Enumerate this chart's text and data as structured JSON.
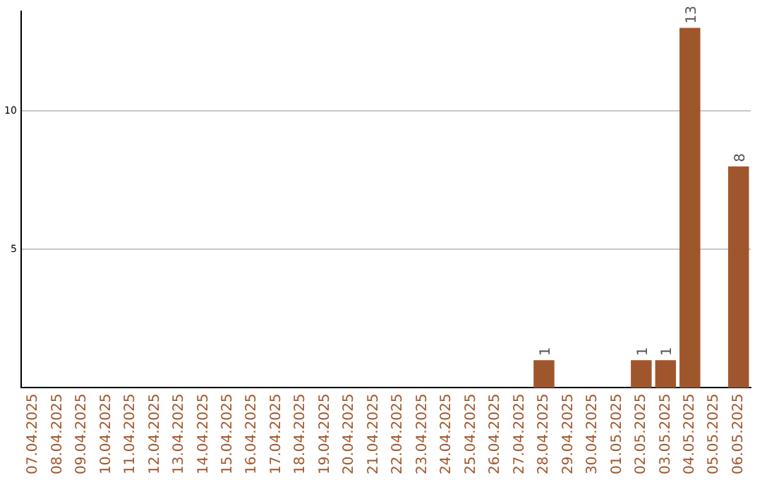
{
  "chart_data": {
    "type": "bar",
    "categories": [
      "07.04.2025",
      "08.04.2025",
      "09.04.2025",
      "10.04.2025",
      "11.04.2025",
      "12.04.2025",
      "13.04.2025",
      "14.04.2025",
      "15.04.2025",
      "16.04.2025",
      "17.04.2025",
      "18.04.2025",
      "19.04.2025",
      "20.04.2025",
      "21.04.2025",
      "22.04.2025",
      "23.04.2025",
      "24.04.2025",
      "25.04.2025",
      "26.04.2025",
      "27.04.2025",
      "28.04.2025",
      "29.04.2025",
      "30.04.2025",
      "01.05.2025",
      "02.05.2025",
      "03.05.2025",
      "04.05.2025",
      "05.05.2025",
      "06.05.2025"
    ],
    "values": [
      0,
      0,
      0,
      0,
      0,
      0,
      0,
      0,
      0,
      0,
      0,
      0,
      0,
      0,
      0,
      0,
      0,
      0,
      0,
      0,
      0,
      1,
      0,
      0,
      0,
      1,
      1,
      13,
      0,
      8
    ],
    "value_labels": [
      null,
      null,
      null,
      null,
      null,
      null,
      null,
      null,
      null,
      null,
      null,
      null,
      null,
      null,
      null,
      null,
      null,
      null,
      null,
      null,
      null,
      "1",
      null,
      null,
      null,
      "1",
      "1",
      "13",
      null,
      "8"
    ],
    "color": "#a0562c",
    "ylim": [
      0,
      13.6
    ],
    "yticks": [
      5,
      10
    ],
    "grid": "y",
    "legend": false
  }
}
